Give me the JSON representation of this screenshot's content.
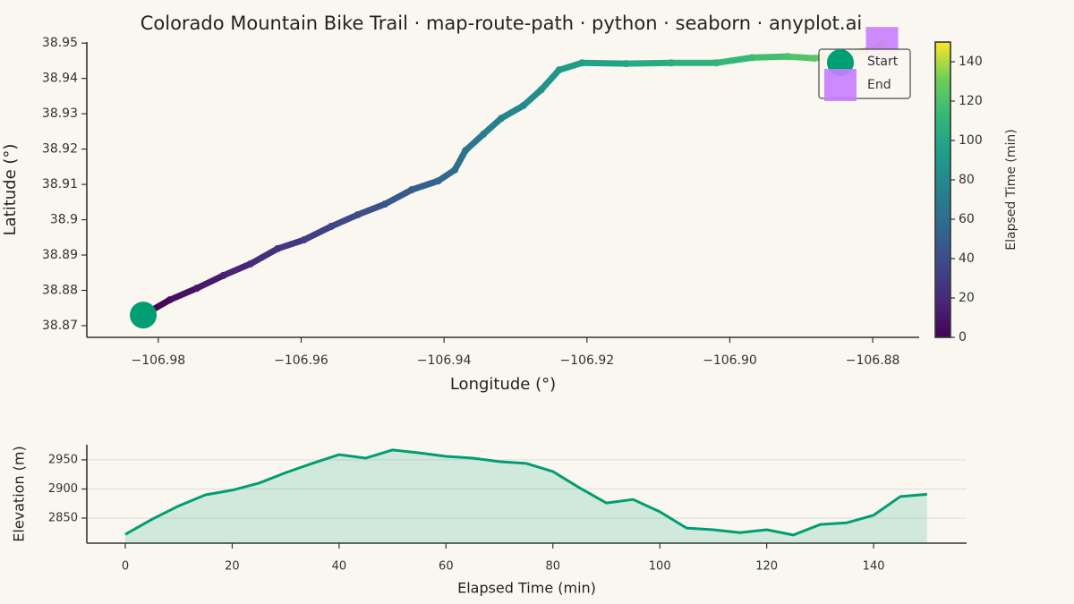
{
  "title": "Colorado Mountain Bike Trail  ·  map-route-path · python · seaborn · anyplot.ai",
  "chart_data": [
    {
      "type": "route",
      "xlabel": "Longitude (°)",
      "ylabel": "Latitude (°)",
      "x": [
        -106.9821,
        -106.9784,
        -106.9746,
        -106.9709,
        -106.9671,
        -106.9633,
        -106.9596,
        -106.9558,
        -106.9521,
        -106.9483,
        -106.9445,
        -106.9408,
        -106.9385,
        -106.937,
        -106.9345,
        -106.932,
        -106.9289,
        -106.9264,
        -106.9239,
        -106.9207,
        -106.9145,
        -106.9082,
        -106.9019,
        -106.8969,
        -106.8919,
        -106.8882,
        -106.8844,
        -106.8819,
        -106.88,
        -106.8794,
        -106.8787
      ],
      "y": [
        38.873,
        38.8773,
        38.8806,
        38.8842,
        38.8875,
        38.8918,
        38.8943,
        38.8981,
        38.9014,
        38.9044,
        38.9085,
        38.911,
        38.9141,
        38.9196,
        38.9242,
        38.9287,
        38.9323,
        38.9368,
        38.9424,
        38.9444,
        38.9442,
        38.9444,
        38.9444,
        38.9459,
        38.9462,
        38.9457,
        38.9465,
        38.9475,
        38.9482,
        38.949,
        38.95
      ],
      "c": [
        0,
        5,
        10,
        15,
        20,
        25,
        30,
        35,
        40,
        45,
        50,
        55,
        60,
        65,
        70,
        75,
        80,
        85,
        90,
        95,
        100,
        105,
        110,
        115,
        120,
        125,
        130,
        135,
        140,
        145,
        150
      ],
      "colormap": "viridis",
      "xlim": [
        -106.99,
        -106.8735
      ],
      "xticks": [
        {
          "value": -106.98,
          "label": "−106.98"
        },
        {
          "value": -106.96,
          "label": "−106.96"
        },
        {
          "value": -106.94,
          "label": "−106.94"
        },
        {
          "value": -106.92,
          "label": "−106.92"
        },
        {
          "value": -106.9,
          "label": "−106.90"
        },
        {
          "value": -106.88,
          "label": "−106.88"
        }
      ],
      "ylim": [
        38.8667,
        38.9503
      ],
      "yticks": [
        38.87,
        38.88,
        38.89,
        38.9,
        {
          "value": 38.91,
          "label": "38.91"
        },
        38.92,
        38.93,
        38.94,
        38.95
      ],
      "colorbar": {
        "label": "Elapsed Time (min)",
        "lim": [
          0,
          150
        ],
        "ticks": [
          0,
          20,
          40,
          60,
          80,
          100,
          120,
          140
        ]
      },
      "markers": [
        {
          "name": "Start",
          "color": "#009e73"
        },
        {
          "name": "End",
          "color": "#c77dff"
        }
      ],
      "legend": "upper right"
    },
    {
      "type": "area",
      "xlabel": "Elapsed Time (min)",
      "ylabel": "Elevation (m)",
      "x": [
        0,
        5,
        10,
        15,
        20,
        25,
        30,
        35,
        40,
        45,
        50,
        55,
        60,
        65,
        70,
        75,
        80,
        85,
        90,
        95,
        100,
        105,
        110,
        115,
        120,
        125,
        130,
        135,
        140,
        145,
        150
      ],
      "values": [
        2822,
        2848,
        2871,
        2890,
        2898,
        2910,
        2928,
        2944,
        2959,
        2953,
        2967,
        2962,
        2956,
        2953,
        2947,
        2944,
        2930,
        2902,
        2876,
        2882,
        2861,
        2833,
        2830,
        2825,
        2830,
        2821,
        2839,
        2842,
        2855,
        2887,
        2891
      ],
      "color": "#009e73",
      "xlim": [
        -7.2,
        157.4
      ],
      "xticks": [
        0,
        20,
        40,
        60,
        80,
        100,
        120,
        140
      ],
      "ylim": [
        2807,
        2976
      ],
      "yticks": [
        2850,
        2900,
        2950
      ],
      "grid": true
    }
  ]
}
